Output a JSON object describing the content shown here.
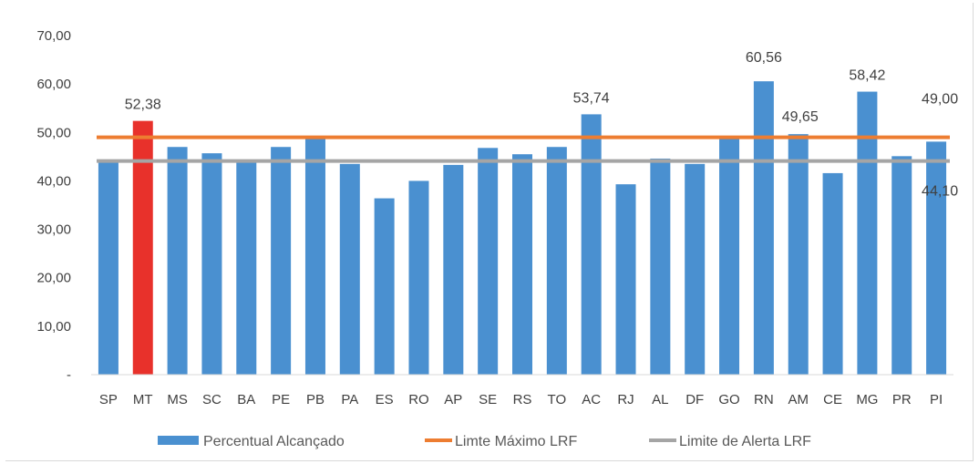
{
  "chart_data": {
    "type": "bar",
    "categories": [
      "SP",
      "MT",
      "MS",
      "SC",
      "BA",
      "PE",
      "PB",
      "PA",
      "ES",
      "RO",
      "AP",
      "SE",
      "RS",
      "TO",
      "AC",
      "RJ",
      "AL",
      "DF",
      "GO",
      "RN",
      "AM",
      "CE",
      "MG",
      "PR",
      "PI"
    ],
    "series": [
      {
        "name": "Percentual Alcançado",
        "type": "bar",
        "color": "#4a90d0",
        "values": [
          44.2,
          52.38,
          47.0,
          45.7,
          44.3,
          47.0,
          48.8,
          43.5,
          36.4,
          40.0,
          43.3,
          46.8,
          45.5,
          47.0,
          53.74,
          39.3,
          44.6,
          43.5,
          48.8,
          60.56,
          49.65,
          41.6,
          58.42,
          45.1,
          48.1
        ],
        "highlight": {
          "index": 1,
          "color": "#e8312b"
        }
      },
      {
        "name": "Limte Máximo LRF",
        "type": "line",
        "color": "#ed7d31",
        "value": 49.0
      },
      {
        "name": "Limite de Alerta LRF",
        "type": "line",
        "color": "#a5a5a5",
        "value": 44.1
      }
    ],
    "data_labels": [
      {
        "series": 0,
        "index": 1,
        "text": "52,38"
      },
      {
        "series": 0,
        "index": 14,
        "text": "53,74"
      },
      {
        "series": 0,
        "index": 19,
        "text": "60,56"
      },
      {
        "series": 0,
        "index": 20,
        "text": "49,65"
      },
      {
        "series": 0,
        "index": 22,
        "text": "58,42"
      },
      {
        "series": 1,
        "index": 24,
        "text": "49,00"
      },
      {
        "series": 2,
        "index": 24,
        "text": "44,10"
      }
    ],
    "y_ticks": [
      {
        "value": 0,
        "label": "-"
      },
      {
        "value": 10,
        "label": "10,00"
      },
      {
        "value": 20,
        "label": "20,00"
      },
      {
        "value": 30,
        "label": "30,00"
      },
      {
        "value": 40,
        "label": "40,00"
      },
      {
        "value": 50,
        "label": "50,00"
      },
      {
        "value": 60,
        "label": "60,00"
      },
      {
        "value": 70,
        "label": "70,00"
      }
    ],
    "ylim": [
      0,
      70
    ],
    "grid": false,
    "legend": {
      "position": "bottom"
    }
  }
}
